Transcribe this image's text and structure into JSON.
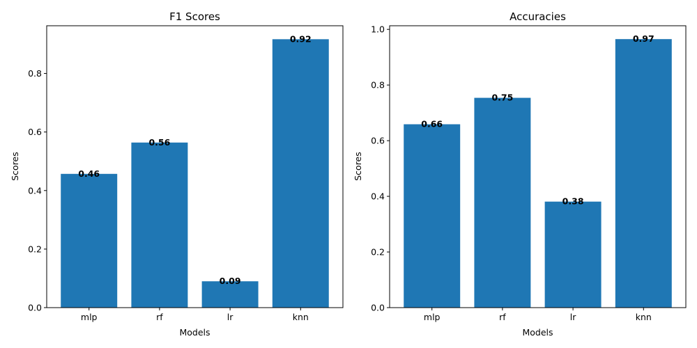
{
  "colors": {
    "bar": "#1f77b4",
    "axis": "#000000",
    "background": "#ffffff"
  },
  "chart_data": [
    {
      "type": "bar",
      "title": "F1 Scores",
      "xlabel": "Models",
      "ylabel": "Scores",
      "categories": [
        "mlp",
        "rf",
        "lr",
        "knn"
      ],
      "values": [
        0.457,
        0.564,
        0.09,
        0.917
      ],
      "value_labels": [
        "0.46",
        "0.56",
        "0.09",
        "0.92"
      ],
      "ylim": [
        0,
        0.963
      ],
      "yticks": [
        0.0,
        0.2,
        0.4,
        0.6,
        0.8
      ],
      "ytick_labels": [
        "0.0",
        "0.2",
        "0.4",
        "0.6",
        "0.8"
      ],
      "grid": false
    },
    {
      "type": "bar",
      "title": "Accuracies",
      "xlabel": "Models",
      "ylabel": "Scores",
      "categories": [
        "mlp",
        "rf",
        "lr",
        "knn"
      ],
      "values": [
        0.659,
        0.754,
        0.381,
        0.965
      ],
      "value_labels": [
        "0.66",
        "0.75",
        "0.38",
        "0.97"
      ],
      "ylim": [
        0,
        1.013
      ],
      "yticks": [
        0.0,
        0.2,
        0.4,
        0.6,
        0.8,
        1.0
      ],
      "ytick_labels": [
        "0.0",
        "0.2",
        "0.4",
        "0.6",
        "0.8",
        "1.0"
      ],
      "grid": false
    }
  ]
}
